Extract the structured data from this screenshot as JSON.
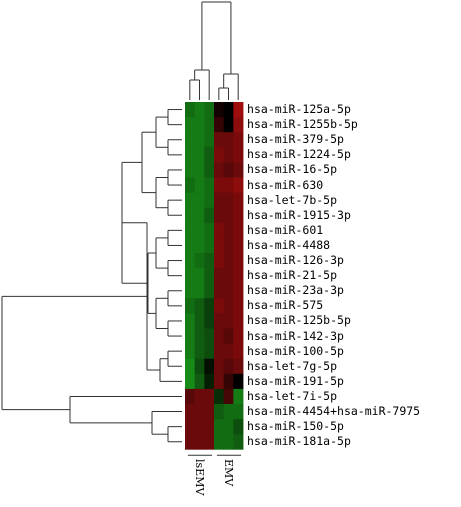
{
  "chart_data": {
    "type": "heatmap",
    "title": "",
    "columns": [
      "lsEMV",
      "EMV"
    ],
    "rows": [
      "hsa-miR-125a-5p",
      "hsa-miR-1255b-5p",
      "hsa-miR-379-5p",
      "hsa-miR-1224-5p",
      "hsa-miR-16-5p",
      "hsa-miR-630",
      "hsa-let-7b-5p",
      "hsa-miR-1915-3p",
      "hsa-miR-601",
      "hsa-miR-4488",
      "hsa-miR-126-3p",
      "hsa-miR-21-5p",
      "hsa-miR-23a-3p",
      "hsa-miR-575",
      "hsa-miR-125b-5p",
      "hsa-miR-142-3p",
      "hsa-miR-100-5p",
      "hsa-let-7g-5p",
      "hsa-miR-191-5p",
      "hsa-let-7i-5p",
      "hsa-miR-4454+hsa-miR-7975",
      "hsa-miR-150-5p",
      "hsa-miR-181a-5p"
    ],
    "sample_groups": [
      {
        "name": "lsEMV",
        "samples": 3
      },
      {
        "name": "EMV",
        "samples": 3
      }
    ],
    "values": [
      [
        -0.7,
        -0.8,
        -0.7,
        0.1,
        0.0,
        0.9
      ],
      [
        -0.8,
        -0.8,
        -0.7,
        0.3,
        0.0,
        0.8
      ],
      [
        -0.8,
        -0.8,
        -0.7,
        0.6,
        0.6,
        0.7
      ],
      [
        -0.8,
        -0.8,
        -0.6,
        0.7,
        0.6,
        0.7
      ],
      [
        -0.8,
        -0.8,
        -0.6,
        0.6,
        0.5,
        0.6
      ],
      [
        -0.7,
        -0.8,
        -0.7,
        0.7,
        0.7,
        0.8
      ],
      [
        -0.8,
        -0.8,
        -0.7,
        0.6,
        0.6,
        0.7
      ],
      [
        -0.8,
        -0.8,
        -0.6,
        0.6,
        0.6,
        0.7
      ],
      [
        -0.8,
        -0.8,
        -0.7,
        0.7,
        0.6,
        0.7
      ],
      [
        -0.8,
        -0.8,
        -0.7,
        0.7,
        0.6,
        0.7
      ],
      [
        -0.8,
        -0.7,
        -0.6,
        0.7,
        0.6,
        0.7
      ],
      [
        -0.8,
        -0.8,
        -0.6,
        0.6,
        0.6,
        0.7
      ],
      [
        -0.8,
        -0.8,
        -0.6,
        0.6,
        0.6,
        0.7
      ],
      [
        -0.7,
        -0.6,
        -0.4,
        0.7,
        0.6,
        0.7
      ],
      [
        -0.8,
        -0.6,
        -0.4,
        0.6,
        0.6,
        0.7
      ],
      [
        -0.8,
        -0.6,
        -0.5,
        0.6,
        0.5,
        0.7
      ],
      [
        -0.8,
        -0.6,
        -0.5,
        0.6,
        0.6,
        0.7
      ],
      [
        -0.9,
        -0.5,
        -0.1,
        0.6,
        0.5,
        0.6
      ],
      [
        -0.9,
        -0.6,
        -0.2,
        0.6,
        0.3,
        0.0
      ],
      [
        0.5,
        0.6,
        0.6,
        -0.3,
        0.4,
        -0.8
      ],
      [
        0.6,
        0.6,
        0.6,
        -0.6,
        -0.7,
        -0.7
      ],
      [
        0.6,
        0.6,
        0.6,
        -0.7,
        -0.7,
        -0.5
      ],
      [
        0.6,
        0.6,
        0.6,
        -0.7,
        -0.7,
        -0.6
      ]
    ],
    "colors": {
      "low": "#1a9a1a",
      "mid": "#000000",
      "high": "#b01010"
    },
    "row_dendrogram": [
      {
        "left": 0,
        "right": 1,
        "height": 0.08
      },
      {
        "left": 4,
        "right": 5,
        "height": 0.05
      },
      {
        "left": 2,
        "right": 3,
        "height": 0.07
      },
      {
        "left": 6,
        "right": 7,
        "height": 0.05
      },
      {
        "left": 8,
        "right": 9,
        "height": 0.05
      },
      {
        "left": 10,
        "right": 11,
        "height": 0.05
      },
      {
        "left": 12,
        "right": 13,
        "height": 0.06
      },
      {
        "left": 14,
        "right": 15,
        "height": 0.06
      },
      {
        "left": 16,
        "right": 17,
        "height": 0.08
      },
      {
        "left": 18,
        "right": 19,
        "height": 0.06
      },
      {
        "left": 20,
        "right": 21,
        "height": 0.05
      },
      {
        "left": 22,
        "right": 23,
        "height": 0.07
      },
      {
        "left": 24,
        "right": 25,
        "height": 0.09
      },
      {
        "left": 26,
        "right": 27,
        "height": 0.1
      },
      {
        "left": 28,
        "right": 29,
        "height": 0.12
      },
      {
        "left": 30,
        "right": 31,
        "height": 0.15
      },
      {
        "left": 32,
        "right": 33,
        "height": 0.2
      },
      {
        "left": 34,
        "right": 35,
        "height": 0.3
      },
      {
        "left": 20,
        "right": 21,
        "height": 0.05
      },
      {
        "left": 21,
        "right": 22,
        "height": 0.1
      }
    ],
    "column_dendrogram": {
      "lsEMV_height": 0.6,
      "EMV_height": 0.55,
      "root_height": 1.0
    }
  }
}
